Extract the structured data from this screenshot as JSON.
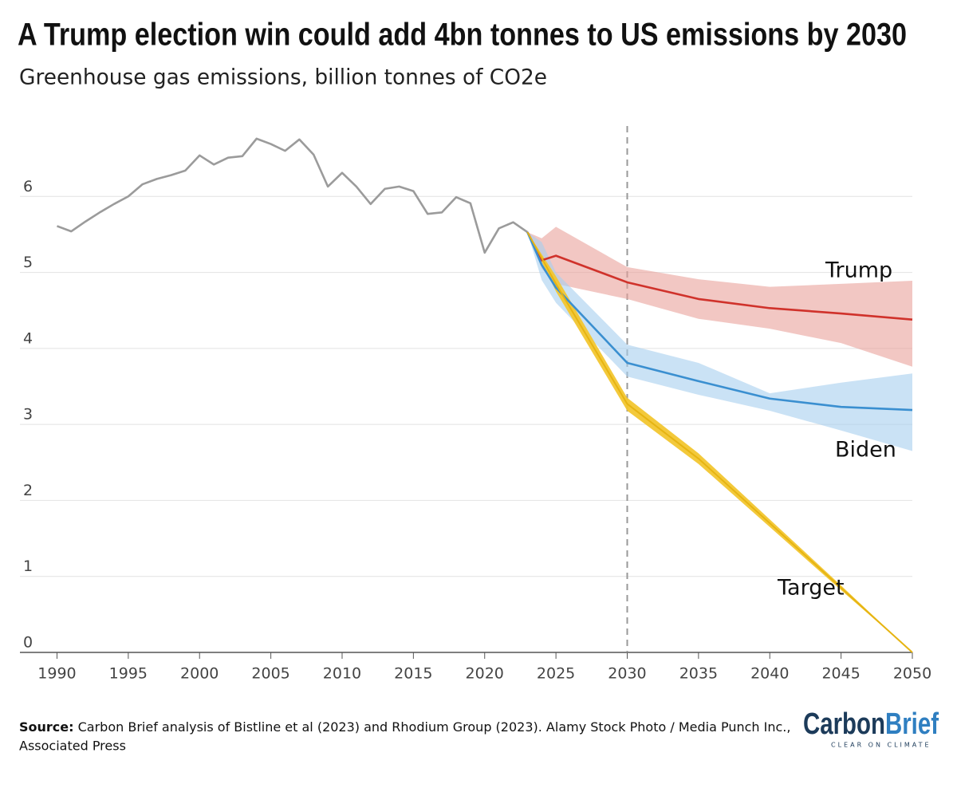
{
  "chart_data": {
    "type": "line",
    "title": "A Trump election win could add 4bn tonnes to US emissions by 2030",
    "subtitle": "Greenhouse gas emissions, billion tonnes of CO2e",
    "xlim": [
      1987.4,
      2050
    ],
    "ylim": [
      0,
      7
    ],
    "xticks": [
      1990,
      1995,
      2000,
      2005,
      2010,
      2015,
      2020,
      2025,
      2030,
      2035,
      2040,
      2045,
      2050
    ],
    "yticks": [
      0,
      1,
      2,
      3,
      4,
      5,
      6
    ],
    "grid": true,
    "reference_line_x": 2030,
    "series": [
      {
        "color": "#9b9b9b",
        "x": [
          1990,
          1991,
          1992,
          1993,
          1994,
          1995,
          1996,
          1997,
          1998,
          1999,
          2000,
          2001,
          2002,
          2003,
          2004,
          2005,
          2006,
          2007,
          2008,
          2009,
          2010,
          2011,
          2012,
          2013,
          2014,
          2015,
          2016,
          2017,
          2018,
          2019,
          2020,
          2021,
          2022,
          2023
        ],
        "values": [
          5.61,
          5.54,
          5.67,
          5.79,
          5.9,
          6.0,
          6.16,
          6.23,
          6.28,
          6.34,
          6.54,
          6.42,
          6.51,
          6.53,
          6.76,
          6.69,
          6.6,
          6.75,
          6.55,
          6.13,
          6.31,
          6.13,
          5.9,
          6.1,
          6.13,
          6.07,
          5.77,
          5.79,
          5.99,
          5.91,
          5.26,
          5.58,
          5.66,
          5.53
        ]
      },
      {
        "name": "Trump",
        "color": "#d0322b",
        "band_color": "#e9a29b",
        "x": [
          2023,
          2024,
          2025,
          2030,
          2035,
          2040,
          2045,
          2050
        ],
        "values": [
          5.53,
          5.16,
          5.22,
          4.87,
          4.65,
          4.53,
          4.46,
          4.38
        ],
        "upper": [
          5.53,
          5.45,
          5.6,
          5.07,
          4.91,
          4.81,
          4.85,
          4.89
        ],
        "lower": [
          5.53,
          5.05,
          4.85,
          4.65,
          4.39,
          4.26,
          4.07,
          3.76
        ]
      },
      {
        "name": "Biden",
        "color": "#3a8fd0",
        "band_color": "#a6cfee",
        "x": [
          2023,
          2024,
          2025,
          2030,
          2035,
          2040,
          2045,
          2050
        ],
        "values": [
          5.53,
          5.1,
          4.8,
          3.81,
          3.57,
          3.34,
          3.23,
          3.19
        ],
        "upper": [
          5.53,
          5.4,
          5.0,
          4.05,
          3.81,
          3.41,
          3.55,
          3.67
        ],
        "lower": [
          5.53,
          4.9,
          4.6,
          3.63,
          3.39,
          3.18,
          2.92,
          2.65
        ]
      },
      {
        "name": "Target",
        "color": "#e6b412",
        "band_color": "#f2c630",
        "x": [
          2023,
          2025,
          2030,
          2035,
          2040,
          2045,
          2050
        ],
        "values": [
          5.53,
          4.85,
          3.27,
          2.55,
          1.7,
          0.85,
          0
        ],
        "upper": [
          5.53,
          4.95,
          3.35,
          2.62,
          1.75,
          0.88,
          0
        ],
        "lower": [
          5.53,
          4.75,
          3.18,
          2.48,
          1.65,
          0.82,
          0
        ]
      }
    ]
  },
  "footer": {
    "source_label": "Source:",
    "source_text": "Carbon Brief analysis of Bistline et al (2023) and Rhodium Group (2023). Alamy Stock Photo / Media Punch Inc.,",
    "source_text_2": "Associated Press"
  },
  "logo": {
    "part1": "Carbon",
    "part2": "Brief",
    "tagline": "CLEAR ON CLIMATE"
  }
}
